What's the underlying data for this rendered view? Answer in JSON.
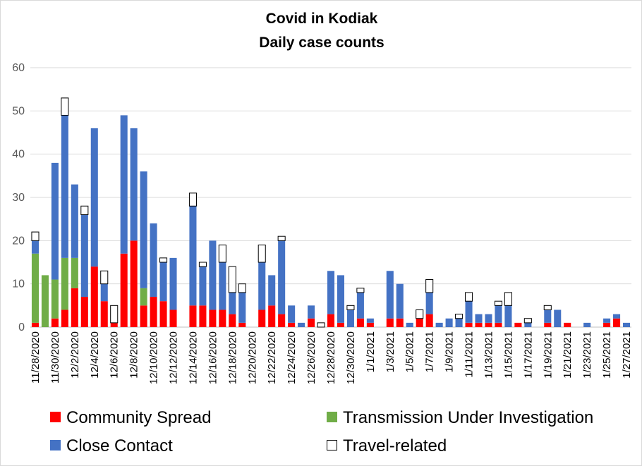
{
  "chart_data": {
    "type": "bar",
    "stacked": true,
    "title": "Covid in Kodiak",
    "subtitle": "Daily case counts",
    "xlabel": "",
    "ylabel": "",
    "ylim": [
      0,
      60
    ],
    "yticks": [
      0,
      10,
      20,
      30,
      40,
      50,
      60
    ],
    "grid": "horizontal",
    "legend_position": "bottom",
    "categories": [
      "11/28/2020",
      "11/29/2020",
      "11/30/2020",
      "12/1/2020",
      "12/2/2020",
      "12/3/2020",
      "12/4/2020",
      "12/5/2020",
      "12/6/2020",
      "12/7/2020",
      "12/8/2020",
      "12/9/2020",
      "12/10/2020",
      "12/11/2020",
      "12/12/2020",
      "12/13/2020",
      "12/14/2020",
      "12/15/2020",
      "12/16/2020",
      "12/17/2020",
      "12/18/2020",
      "12/19/2020",
      "12/20/2020",
      "12/21/2020",
      "12/22/2020",
      "12/23/2020",
      "12/24/2020",
      "12/25/2020",
      "12/26/2020",
      "12/27/2020",
      "12/28/2020",
      "12/29/2020",
      "12/30/2020",
      "12/31/2020",
      "1/1/2021",
      "1/2/2021",
      "1/3/2021",
      "1/4/2021",
      "1/5/2021",
      "1/6/2021",
      "1/7/2021",
      "1/8/2021",
      "1/9/2021",
      "1/10/2021",
      "1/11/2021",
      "1/12/2021",
      "1/13/2021",
      "1/14/2021",
      "1/15/2021",
      "1/16/2021",
      "1/17/2021",
      "1/18/2021",
      "1/19/2021",
      "1/20/2021",
      "1/21/2021",
      "1/22/2021",
      "1/23/2021",
      "1/24/2021",
      "1/25/2021",
      "1/26/2021",
      "1/27/2021"
    ],
    "xtick_labels": [
      "11/28/2020",
      "11/30/2020",
      "12/2/2020",
      "12/4/2020",
      "12/6/2020",
      "12/8/2020",
      "12/10/2020",
      "12/12/2020",
      "12/14/2020",
      "12/16/2020",
      "12/18/2020",
      "12/20/2020",
      "12/22/2020",
      "12/24/2020",
      "12/26/2020",
      "12/28/2020",
      "12/30/2020",
      "1/1/2021",
      "1/3/2021",
      "1/5/2021",
      "1/7/2021",
      "1/9/2021",
      "1/11/2021",
      "1/13/2021",
      "1/15/2021",
      "1/17/2021",
      "1/19/2021",
      "1/21/2021",
      "1/23/2021",
      "1/25/2021",
      "1/27/2021"
    ],
    "series": [
      {
        "name": "Community Spread",
        "color": "#ff0000",
        "values": [
          1,
          0,
          2,
          4,
          9,
          7,
          14,
          6,
          1,
          17,
          20,
          5,
          7,
          6,
          4,
          0,
          5,
          5,
          4,
          4,
          3,
          1,
          0,
          4,
          5,
          3,
          1,
          0,
          2,
          0,
          3,
          1,
          0,
          2,
          1,
          0,
          2,
          2,
          0,
          2,
          3,
          0,
          0,
          0,
          1,
          1,
          1,
          1,
          0,
          1,
          0,
          0,
          1,
          0,
          1,
          0,
          0,
          0,
          1,
          2,
          0
        ]
      },
      {
        "name": "Transmission Under Investigation",
        "color": "#70ad47",
        "values": [
          16,
          12,
          9,
          12,
          7,
          0,
          0,
          0,
          0,
          0,
          0,
          4,
          0,
          0,
          0,
          0,
          0,
          0,
          0,
          0,
          0,
          0,
          0,
          0,
          0,
          0,
          0,
          0,
          0,
          0,
          0,
          0,
          0,
          0,
          0,
          0,
          0,
          0,
          0,
          0,
          0,
          0,
          0,
          0,
          0,
          0,
          0,
          0,
          0,
          0,
          0,
          0,
          0,
          0,
          0,
          0,
          0,
          0,
          0,
          0,
          0
        ]
      },
      {
        "name": "Close Contact",
        "color": "#4472c4",
        "values": [
          3,
          0,
          27,
          33,
          17,
          19,
          32,
          4,
          0,
          32,
          26,
          27,
          17,
          9,
          12,
          0,
          23,
          9,
          16,
          11,
          5,
          7,
          0,
          11,
          7,
          17,
          4,
          1,
          3,
          0,
          10,
          11,
          4,
          6,
          1,
          0,
          11,
          8,
          1,
          0,
          5,
          1,
          2,
          2,
          5,
          2,
          2,
          4,
          5,
          0,
          1,
          0,
          3,
          4,
          0,
          0,
          1,
          0,
          1,
          1,
          1
        ]
      },
      {
        "name": "Travel-related",
        "color": "#ffffff",
        "values": [
          2,
          0,
          0,
          4,
          0,
          2,
          0,
          3,
          4,
          0,
          0,
          0,
          0,
          1,
          0,
          0,
          3,
          1,
          0,
          4,
          6,
          2,
          0,
          4,
          0,
          1,
          0,
          0,
          0,
          1,
          0,
          0,
          1,
          1,
          0,
          0,
          0,
          0,
          0,
          2,
          3,
          0,
          0,
          1,
          2,
          0,
          0,
          1,
          3,
          0,
          1,
          0,
          1,
          0,
          0,
          0,
          0,
          0,
          0,
          0,
          0
        ]
      }
    ]
  }
}
